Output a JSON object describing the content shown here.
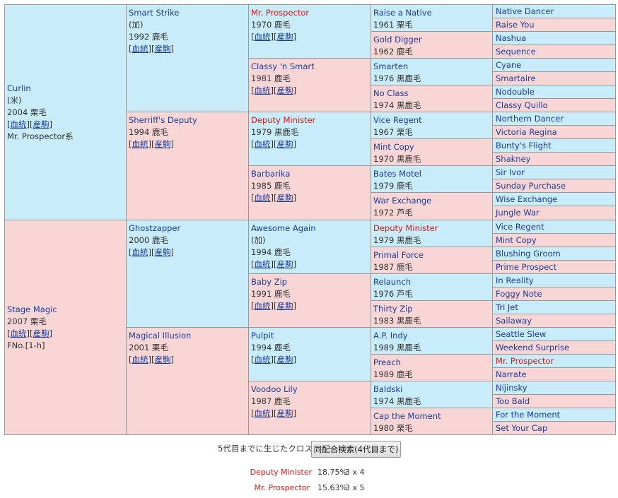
{
  "pedigree": {
    "gen1": [
      {
        "name": "Curlin",
        "lines": [
          "(米)",
          "2004 栗毛"
        ],
        "links": [
          "血統",
          "産駒"
        ],
        "extra": [
          "Mr. Prospector系"
        ]
      },
      {
        "name": "Stage Magic",
        "lines": [
          "2007 栗毛"
        ],
        "links": [
          "血統",
          "産駒"
        ],
        "extra": [
          "FNo.[1-h]"
        ]
      }
    ],
    "gen2": [
      {
        "name": "Smart Strike",
        "lines": [
          "(加)",
          "1992 鹿毛"
        ],
        "links": [
          "血統",
          "産駒"
        ]
      },
      {
        "name": "Sherriff's Deputy",
        "lines": [
          "1994 鹿毛"
        ],
        "links": [
          "血統",
          "産駒"
        ]
      },
      {
        "name": "Ghostzapper",
        "lines": [
          "2000 鹿毛"
        ],
        "links": [
          "血統",
          "産駒"
        ]
      },
      {
        "name": "Magical Illusion",
        "lines": [
          "2001 栗毛"
        ],
        "links": [
          "血統",
          "産駒"
        ]
      }
    ],
    "gen3": [
      {
        "name": "Mr. Prospector",
        "red": true,
        "lines": [
          "1970 鹿毛"
        ],
        "links": [
          "血統",
          "産駒"
        ]
      },
      {
        "name": "Classy 'n Smart",
        "lines": [
          "1981 鹿毛"
        ],
        "links": [
          "血統",
          "産駒"
        ]
      },
      {
        "name": "Deputy Minister",
        "red": true,
        "lines": [
          "1979 黒鹿毛"
        ],
        "links": [
          "血統",
          "産駒"
        ]
      },
      {
        "name": "Barbarika",
        "lines": [
          "1985 鹿毛"
        ],
        "links": [
          "血統",
          "産駒"
        ]
      },
      {
        "name": "Awesome Again",
        "lines": [
          "(加)",
          "1994 鹿毛"
        ],
        "links": [
          "血統",
          "産駒"
        ]
      },
      {
        "name": "Baby Zip",
        "lines": [
          "1991 鹿毛"
        ],
        "links": [
          "血統",
          "産駒"
        ]
      },
      {
        "name": "Pulpit",
        "lines": [
          "1994 鹿毛"
        ],
        "links": [
          "血統",
          "産駒"
        ]
      },
      {
        "name": "Voodoo Lily",
        "lines": [
          "1987 鹿毛"
        ],
        "links": [
          "血統",
          "産駒"
        ]
      }
    ],
    "gen4": [
      {
        "name": "Raise a Native",
        "lines": [
          "1961 栗毛"
        ]
      },
      {
        "name": "Gold Digger",
        "lines": [
          "1962 鹿毛"
        ]
      },
      {
        "name": "Smarten",
        "lines": [
          "1976 黒鹿毛"
        ]
      },
      {
        "name": "No Class",
        "lines": [
          "1974 黒鹿毛"
        ]
      },
      {
        "name": "Vice Regent",
        "lines": [
          "1967 栗毛"
        ]
      },
      {
        "name": "Mint Copy",
        "lines": [
          "1970 黒鹿毛"
        ]
      },
      {
        "name": "Bates Motel",
        "lines": [
          "1979 鹿毛"
        ]
      },
      {
        "name": "War Exchange",
        "lines": [
          "1972 芦毛"
        ]
      },
      {
        "name": "Deputy Minister",
        "red": true,
        "lines": [
          "1979 黒鹿毛"
        ]
      },
      {
        "name": "Primal Force",
        "lines": [
          "1987 鹿毛"
        ]
      },
      {
        "name": "Relaunch",
        "lines": [
          "1976 芦毛"
        ]
      },
      {
        "name": "Thirty Zip",
        "lines": [
          "1983 黒鹿毛"
        ]
      },
      {
        "name": "A.P. Indy",
        "lines": [
          "1989 黒鹿毛"
        ]
      },
      {
        "name": "Preach",
        "lines": [
          "1989 鹿毛"
        ]
      },
      {
        "name": "Baldski",
        "lines": [
          "1974 黒鹿毛"
        ]
      },
      {
        "name": "Cap the Moment",
        "lines": [
          "1980 栗毛"
        ]
      }
    ],
    "gen5": [
      {
        "name": "Native Dancer"
      },
      {
        "name": "Raise You"
      },
      {
        "name": "Nashua"
      },
      {
        "name": "Sequence"
      },
      {
        "name": "Cyane"
      },
      {
        "name": "Smartaire"
      },
      {
        "name": "Nodouble"
      },
      {
        "name": "Classy Quillo"
      },
      {
        "name": "Northern Dancer"
      },
      {
        "name": "Victoria Regina"
      },
      {
        "name": "Bunty's Flight"
      },
      {
        "name": "Shakney"
      },
      {
        "name": "Sir Ivor"
      },
      {
        "name": "Sunday Purchase"
      },
      {
        "name": "Wise Exchange"
      },
      {
        "name": "Jungle War"
      },
      {
        "name": "Vice Regent"
      },
      {
        "name": "Mint Copy"
      },
      {
        "name": "Blushing Groom"
      },
      {
        "name": "Prime Prospect"
      },
      {
        "name": "In Reality"
      },
      {
        "name": "Foggy Note"
      },
      {
        "name": "Tri Jet"
      },
      {
        "name": "Sailaway"
      },
      {
        "name": "Seattle Slew"
      },
      {
        "name": "Weekend Surprise"
      },
      {
        "name": "Mr. Prospector",
        "red": true
      },
      {
        "name": "Narrate"
      },
      {
        "name": "Nijinsky"
      },
      {
        "name": "Too Bald"
      },
      {
        "name": "For the Moment"
      },
      {
        "name": "Set Your Cap"
      }
    ]
  },
  "cross": {
    "heading": "5代目までに生じたクロス",
    "button_label": "同配合検索(4代目まで)",
    "rows": [
      {
        "name": "Deputy Minister",
        "percent": "18.75%",
        "gen": "3 x 4"
      },
      {
        "name": "Mr. Prospector",
        "percent": "15.63%",
        "gen": "3 x 5"
      }
    ]
  },
  "colors": {
    "male_bg": "#c8ecf9",
    "female_bg": "#f9d6d6",
    "link": "#1a3a9c",
    "cross_red": "#d81818"
  }
}
